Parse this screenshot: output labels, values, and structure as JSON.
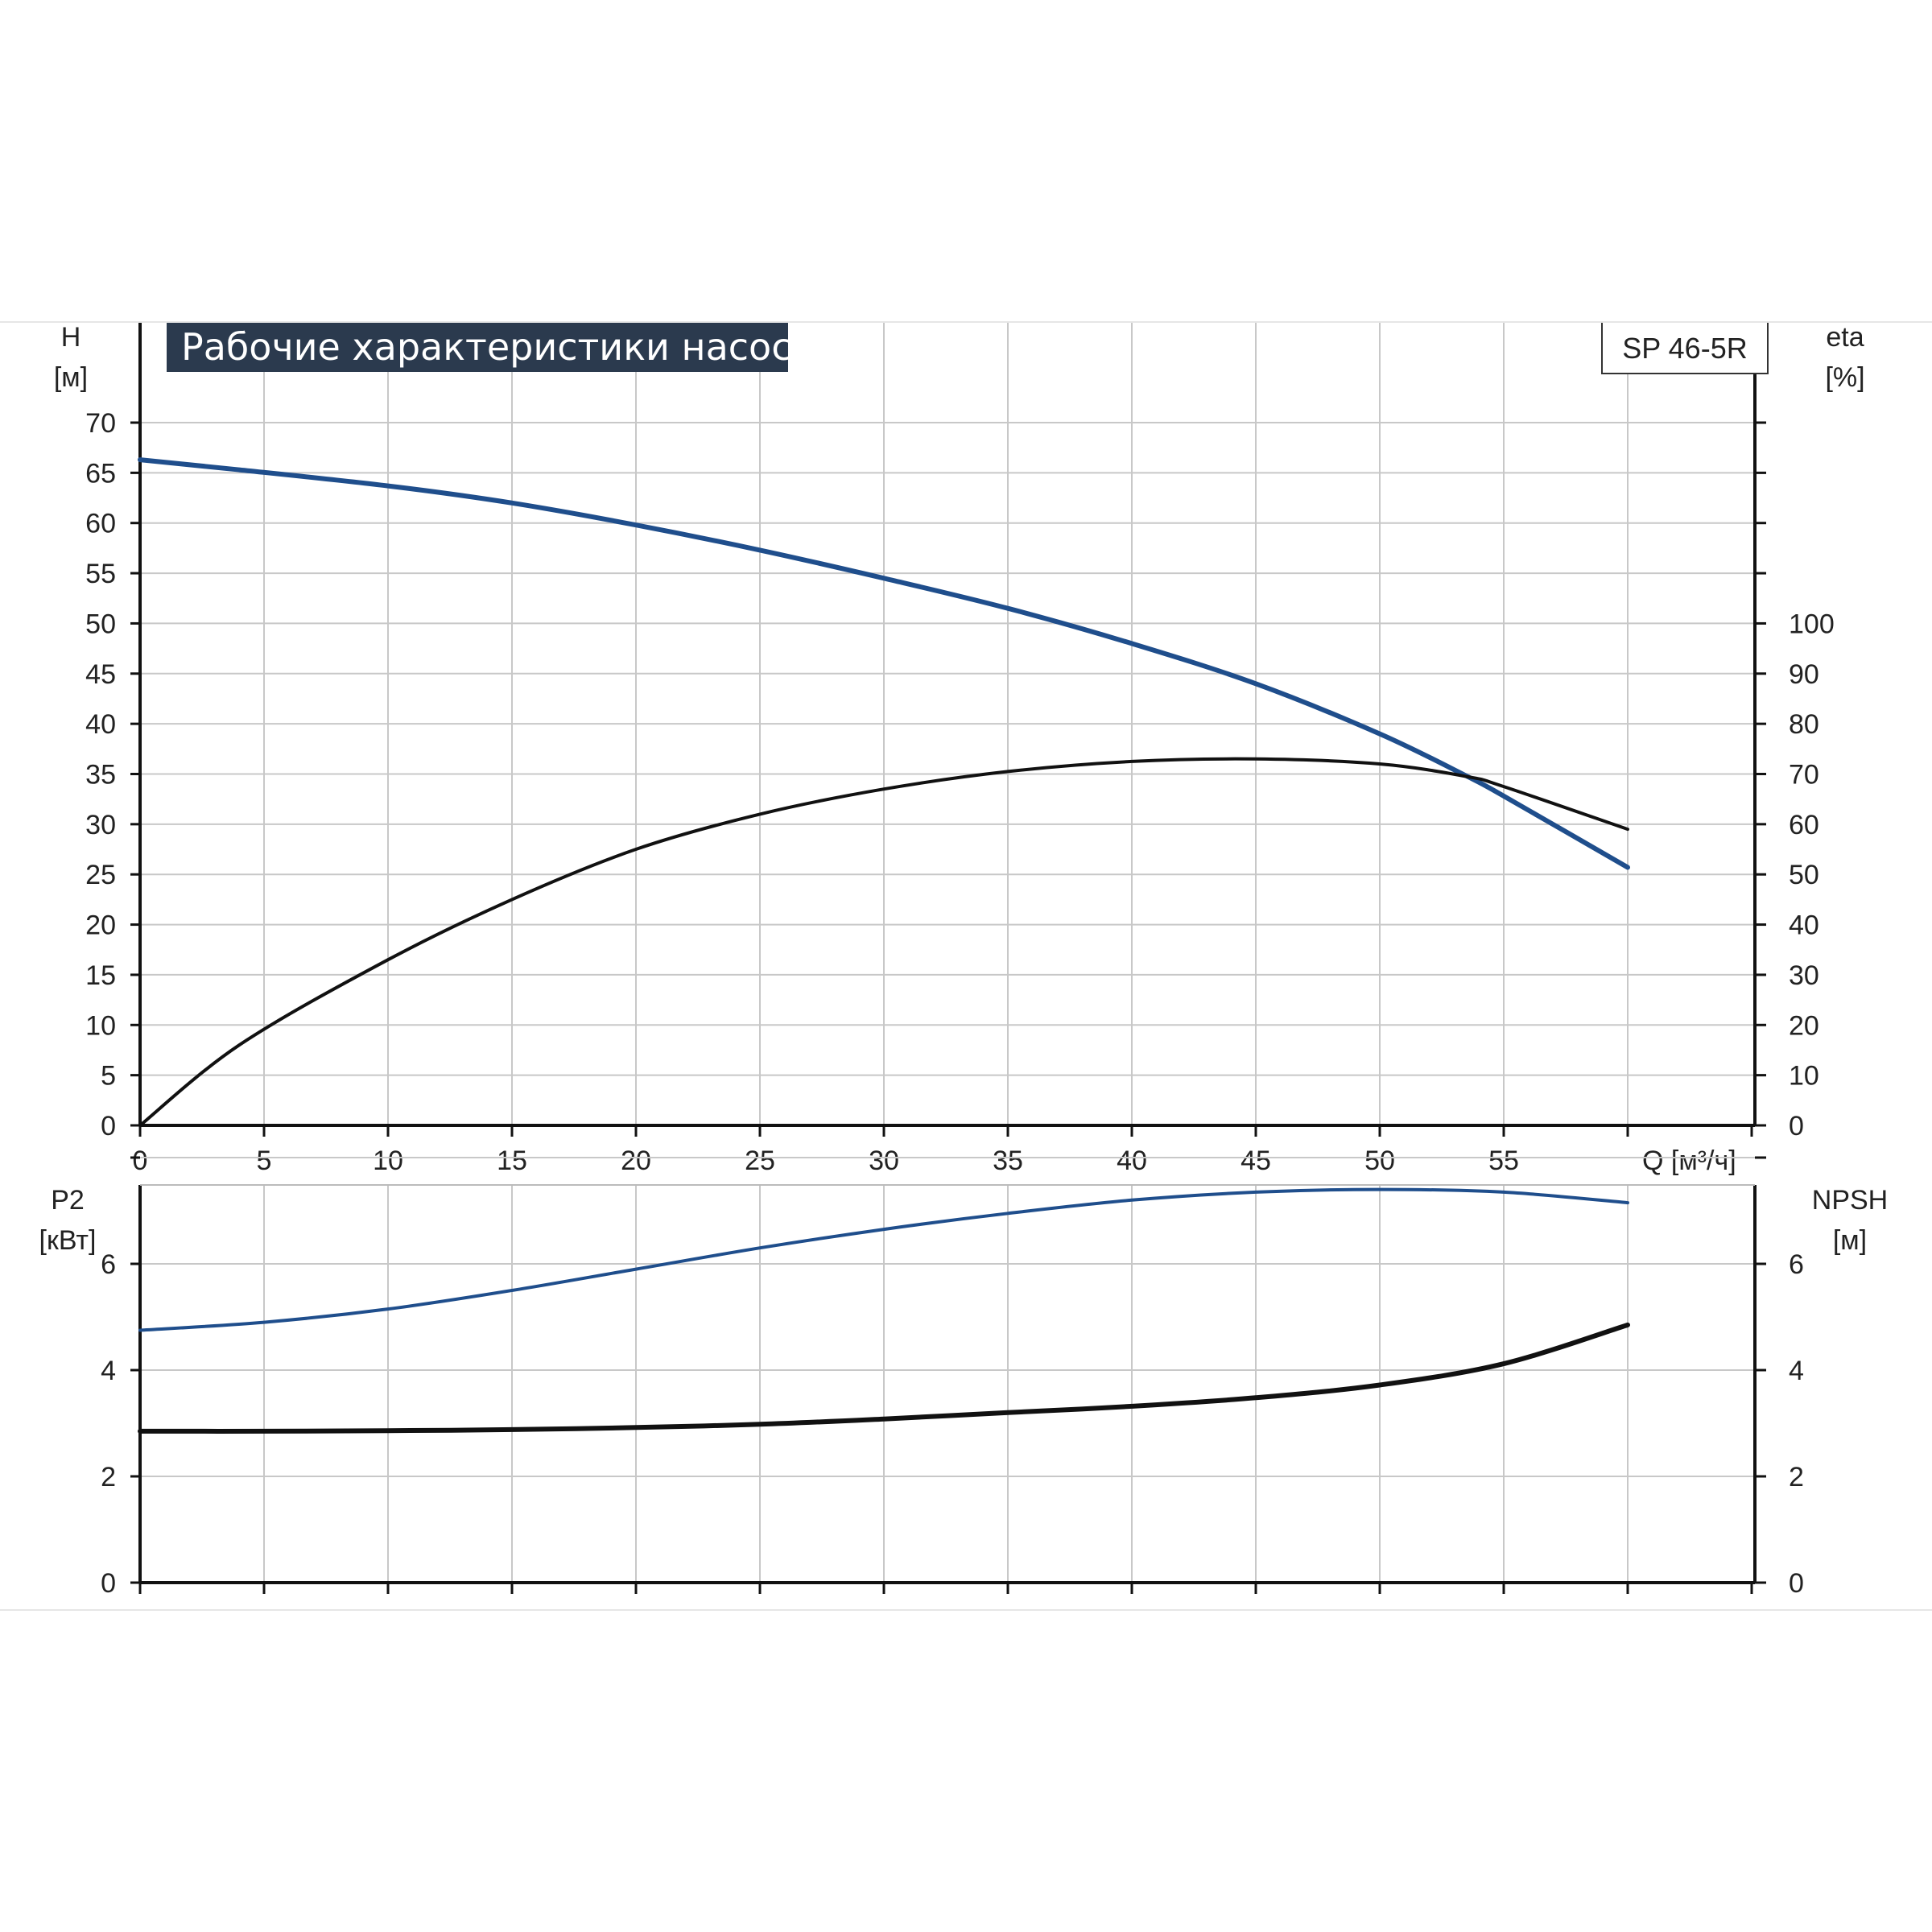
{
  "chart_data": [
    {
      "type": "line",
      "panel": "top",
      "title": "Рабочие характеристики насоса",
      "model": "SP 46-5R",
      "xlabel": "Q [м³/ч]",
      "x_ticks": [
        "0",
        "5",
        "10",
        "15",
        "20",
        "25",
        "30",
        "35",
        "40",
        "45",
        "50",
        "55"
      ],
      "xlim": [
        0,
        65
      ],
      "y_left_label": "H",
      "y_left_unit": "[м]",
      "y_left_ticks": [
        "0",
        "5",
        "10",
        "15",
        "20",
        "25",
        "30",
        "35",
        "40",
        "45",
        "50",
        "55",
        "60",
        "65",
        "70"
      ],
      "y_left_lim": [
        0,
        70
      ],
      "y_right_label": "eta",
      "y_right_unit": "[%]",
      "y_right_ticks": [
        "0",
        "10",
        "20",
        "30",
        "40",
        "50",
        "60",
        "70",
        "80",
        "90",
        "100"
      ],
      "y_right_lim": [
        0,
        140
      ],
      "grid": true,
      "series": [
        {
          "color": "#1f4e8c",
          "axis": "left",
          "x": [
            0,
            4,
            10,
            15,
            20,
            25,
            30,
            35,
            40,
            45,
            50,
            53.5,
            55,
            60
          ],
          "y": [
            66.3,
            65.3,
            63.7,
            62.0,
            59.8,
            57.3,
            54.5,
            51.5,
            48.0,
            44.0,
            39.0,
            34.8,
            32.8,
            25.7
          ]
        },
        {
          "color": "#111111",
          "axis": "right",
          "x": [
            0,
            4,
            10,
            15,
            20,
            25,
            30,
            35,
            40,
            45,
            50,
            53.5,
            55,
            60
          ],
          "y": [
            0,
            16,
            33,
            45,
            55,
            62,
            67,
            70.5,
            72.5,
            73,
            72,
            69.5,
            67.5,
            59
          ]
        }
      ]
    },
    {
      "type": "line",
      "panel": "bottom",
      "x_ticks": [
        "0",
        "5",
        "10",
        "15",
        "20",
        "25",
        "30",
        "35",
        "40",
        "45",
        "50",
        "55"
      ],
      "xlim": [
        0,
        65
      ],
      "y_left_label": "P2",
      "y_left_unit": "[кВт]",
      "y_left_ticks": [
        "0",
        "2",
        "4",
        "6"
      ],
      "y_left_lim": [
        0,
        8
      ],
      "y_right_label": "NPSH",
      "y_right_unit": "[м]",
      "y_right_ticks": [
        "0",
        "2",
        "4",
        "6"
      ],
      "y_right_lim": [
        0,
        8
      ],
      "grid": true,
      "series": [
        {
          "color": "#1f4e8c",
          "axis": "left",
          "x": [
            0,
            5,
            10,
            15,
            20,
            25,
            30,
            35,
            40,
            45,
            50,
            55,
            60
          ],
          "y": [
            4.75,
            4.9,
            5.15,
            5.5,
            5.9,
            6.3,
            6.65,
            6.95,
            7.2,
            7.35,
            7.4,
            7.35,
            7.15
          ]
        },
        {
          "color": "#111111",
          "axis": "right",
          "x": [
            0,
            5,
            10,
            15,
            20,
            25,
            30,
            35,
            40,
            45,
            50,
            55,
            60
          ],
          "y": [
            2.85,
            2.85,
            2.86,
            2.88,
            2.92,
            2.98,
            3.08,
            3.2,
            3.32,
            3.48,
            3.72,
            4.12,
            4.85
          ]
        }
      ]
    }
  ]
}
